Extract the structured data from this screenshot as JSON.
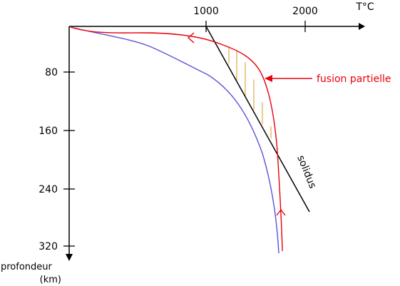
{
  "axes": {
    "x_unit": "T°C",
    "x_ticks": [
      "1000",
      "2000"
    ],
    "y_label_line1": "profondeur",
    "y_label_line2": "(km)",
    "y_ticks": [
      "80",
      "160",
      "240",
      "320"
    ]
  },
  "labels": {
    "partial_melting": "fusion partielle",
    "solidus": "solidus"
  },
  "colors": {
    "red_curve": "#e8000b",
    "blue_curve": "#5a55d6",
    "hatch": "#d99a22",
    "axis": "#000000"
  }
}
